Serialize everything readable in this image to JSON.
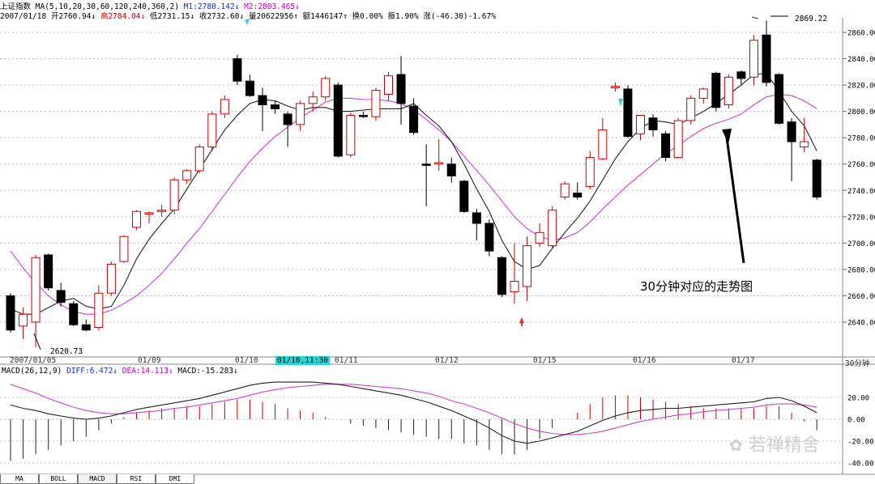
{
  "header": {
    "line1": {
      "name": "上证指数",
      "ma_spec": "MA(5,10,20,30,60,120,240,360,2)",
      "m1": "M1:2780.142↓",
      "m2": "M2:2803.465↓"
    },
    "line2": {
      "date": "2007/01/18",
      "open": "开2760.94↓",
      "high": "高2784.04↓",
      "low": "低2731.15↓",
      "close": "收2732.60↓",
      "volume": "量20622956↑",
      "amount": "额1446147↑",
      "turnover": "换0.00%",
      "amplitude": "振1.90%",
      "change": "涨(-46.30)-1.67%"
    }
  },
  "main_chart": {
    "y_ticks": [
      "2860.00",
      "2840.00",
      "2820.00",
      "2800.00",
      "2780.00",
      "2760.00",
      "2740.00",
      "2720.00",
      "2700.00",
      "2680.00",
      "2660.00",
      "2640.00"
    ],
    "high_label": "2869.22",
    "low_label": "2620.73",
    "annotation": "30分钟对应的走势图",
    "period_badge": "30分钟",
    "cursor_date": "01/10,11:30",
    "dates": [
      "2007/01/05",
      "01/09",
      "01/10",
      "01/11",
      "01/12",
      "01/15",
      "01/16",
      "01/17"
    ],
    "colors": {
      "ma1": "#222222",
      "ma2": "#d040d0",
      "up": "#cc0000",
      "down": "#000000"
    }
  },
  "macd_panel": {
    "title": "MACD(26,12,9)",
    "diff": "DIFF:6.472↓",
    "dea": "DEA:14.113↓",
    "macd": "MACD:-15.283↓",
    "y_ticks": [
      "20.00",
      "0.00",
      "-20.00",
      "-40.00"
    ]
  },
  "tabs": [
    "MA",
    "BOLL",
    "MACD",
    "RSI",
    "DMI"
  ],
  "watermark": "若禅精舍",
  "chart_data": {
    "type": "candlestick",
    "title": "上证指数",
    "ylim": [
      2630,
      2870
    ],
    "candles": [
      {
        "o": 2660,
        "h": 2662,
        "l": 2632,
        "c": 2634
      },
      {
        "o": 2637,
        "h": 2651,
        "l": 2627,
        "c": 2646
      },
      {
        "o": 2640,
        "h": 2691,
        "l": 2621,
        "c": 2689
      },
      {
        "o": 2691,
        "h": 2692,
        "l": 2664,
        "c": 2666
      },
      {
        "o": 2664,
        "h": 2670,
        "l": 2652,
        "c": 2655
      },
      {
        "o": 2654,
        "h": 2656,
        "l": 2637,
        "c": 2638
      },
      {
        "o": 2638,
        "h": 2642,
        "l": 2633,
        "c": 2634
      },
      {
        "o": 2636,
        "h": 2668,
        "l": 2634,
        "c": 2662
      },
      {
        "o": 2662,
        "h": 2686,
        "l": 2660,
        "c": 2684
      },
      {
        "o": 2686,
        "h": 2706,
        "l": 2685,
        "c": 2705
      },
      {
        "o": 2712,
        "h": 2725,
        "l": 2710,
        "c": 2724
      },
      {
        "o": 2722,
        "h": 2724,
        "l": 2715,
        "c": 2723
      },
      {
        "o": 2724,
        "h": 2729,
        "l": 2720,
        "c": 2725
      },
      {
        "o": 2725,
        "h": 2750,
        "l": 2722,
        "c": 2748
      },
      {
        "o": 2748,
        "h": 2756,
        "l": 2745,
        "c": 2755
      },
      {
        "o": 2755,
        "h": 2775,
        "l": 2753,
        "c": 2773
      },
      {
        "o": 2773,
        "h": 2800,
        "l": 2770,
        "c": 2798
      },
      {
        "o": 2798,
        "h": 2812,
        "l": 2795,
        "c": 2809
      },
      {
        "o": 2840,
        "h": 2843,
        "l": 2820,
        "c": 2823
      },
      {
        "o": 2823,
        "h": 2828,
        "l": 2811,
        "c": 2812
      },
      {
        "o": 2812,
        "h": 2818,
        "l": 2785,
        "c": 2805
      },
      {
        "o": 2805,
        "h": 2808,
        "l": 2798,
        "c": 2802
      },
      {
        "o": 2798,
        "h": 2800,
        "l": 2773,
        "c": 2790
      },
      {
        "o": 2790,
        "h": 2808,
        "l": 2785,
        "c": 2806
      },
      {
        "o": 2806,
        "h": 2815,
        "l": 2800,
        "c": 2811
      },
      {
        "o": 2811,
        "h": 2827,
        "l": 2808,
        "c": 2825
      },
      {
        "o": 2820,
        "h": 2822,
        "l": 2765,
        "c": 2766
      },
      {
        "o": 2767,
        "h": 2799,
        "l": 2765,
        "c": 2797
      },
      {
        "o": 2797,
        "h": 2800,
        "l": 2795,
        "c": 2796
      },
      {
        "o": 2796,
        "h": 2818,
        "l": 2793,
        "c": 2816
      },
      {
        "o": 2813,
        "h": 2830,
        "l": 2808,
        "c": 2827
      },
      {
        "o": 2828,
        "h": 2842,
        "l": 2790,
        "c": 2806
      },
      {
        "o": 2804,
        "h": 2810,
        "l": 2782,
        "c": 2784
      },
      {
        "o": 2760,
        "h": 2775,
        "l": 2728,
        "c": 2759
      },
      {
        "o": 2760,
        "h": 2779,
        "l": 2755,
        "c": 2761
      },
      {
        "o": 2760,
        "h": 2765,
        "l": 2746,
        "c": 2751
      },
      {
        "o": 2747,
        "h": 2748,
        "l": 2723,
        "c": 2724
      },
      {
        "o": 2723,
        "h": 2726,
        "l": 2702,
        "c": 2715
      },
      {
        "o": 2715,
        "h": 2718,
        "l": 2690,
        "c": 2694
      },
      {
        "o": 2689,
        "h": 2690,
        "l": 2659,
        "c": 2661
      },
      {
        "o": 2663,
        "h": 2700,
        "l": 2654,
        "c": 2671
      },
      {
        "o": 2667,
        "h": 2705,
        "l": 2656,
        "c": 2698
      },
      {
        "o": 2700,
        "h": 2715,
        "l": 2697,
        "c": 2708
      },
      {
        "o": 2698,
        "h": 2728,
        "l": 2696,
        "c": 2725
      },
      {
        "o": 2735,
        "h": 2747,
        "l": 2733,
        "c": 2745
      },
      {
        "o": 2738,
        "h": 2746,
        "l": 2733,
        "c": 2735
      },
      {
        "o": 2743,
        "h": 2770,
        "l": 2741,
        "c": 2765
      },
      {
        "o": 2764,
        "h": 2795,
        "l": 2763,
        "c": 2786
      },
      {
        "o": 2818,
        "h": 2822,
        "l": 2815,
        "c": 2819
      },
      {
        "o": 2817,
        "h": 2820,
        "l": 2780,
        "c": 2781
      },
      {
        "o": 2783,
        "h": 2797,
        "l": 2778,
        "c": 2797
      },
      {
        "o": 2795,
        "h": 2798,
        "l": 2781,
        "c": 2786
      },
      {
        "o": 2783,
        "h": 2785,
        "l": 2762,
        "c": 2765
      },
      {
        "o": 2765,
        "h": 2795,
        "l": 2764,
        "c": 2793
      },
      {
        "o": 2793,
        "h": 2812,
        "l": 2790,
        "c": 2810
      },
      {
        "o": 2810,
        "h": 2818,
        "l": 2806,
        "c": 2817
      },
      {
        "o": 2829,
        "h": 2830,
        "l": 2800,
        "c": 2803
      },
      {
        "o": 2805,
        "h": 2828,
        "l": 2802,
        "c": 2826
      },
      {
        "o": 2830,
        "h": 2831,
        "l": 2820,
        "c": 2825
      },
      {
        "o": 2826,
        "h": 2858,
        "l": 2820,
        "c": 2854
      },
      {
        "o": 2858,
        "h": 2869,
        "l": 2819,
        "c": 2822
      },
      {
        "o": 2828,
        "h": 2829,
        "l": 2790,
        "c": 2791
      },
      {
        "o": 2792,
        "h": 2795,
        "l": 2747,
        "c": 2777
      },
      {
        "o": 2773,
        "h": 2795,
        "l": 2769,
        "c": 2777
      },
      {
        "o": 2763,
        "h": 2764,
        "l": 2733,
        "c": 2735
      }
    ],
    "ma1": [
      2650,
      2646,
      2646,
      2651,
      2656,
      2658,
      2652,
      2650,
      2652,
      2668,
      2688,
      2703,
      2715,
      2726,
      2741,
      2756,
      2771,
      2786,
      2797,
      2806,
      2809,
      2808,
      2804,
      2801,
      2803,
      2803,
      2800,
      2800,
      2801,
      2802,
      2802,
      2802,
      2806,
      2797,
      2789,
      2777,
      2760,
      2741,
      2724,
      2702,
      2686,
      2680,
      2683,
      2696,
      2708,
      2719,
      2732,
      2748,
      2764,
      2777,
      2787,
      2793,
      2792,
      2790,
      2795,
      2800,
      2806,
      2813,
      2820,
      2828,
      2829,
      2815,
      2800,
      2789,
      2770
    ],
    "ma2": [
      2694,
      2681,
      2670,
      2660,
      2653,
      2648,
      2646,
      2646,
      2649,
      2654,
      2660,
      2668,
      2677,
      2688,
      2700,
      2711,
      2724,
      2737,
      2750,
      2762,
      2772,
      2781,
      2788,
      2795,
      2801,
      2807,
      2810,
      2810,
      2809,
      2809,
      2808,
      2806,
      2801,
      2794,
      2786,
      2777,
      2766,
      2755,
      2744,
      2732,
      2720,
      2711,
      2705,
      2702,
      2704,
      2708,
      2716,
      2726,
      2735,
      2744,
      2752,
      2760,
      2768,
      2774,
      2781,
      2787,
      2791,
      2794,
      2798,
      2805,
      2811,
      2813,
      2812,
      2808,
      2802
    ],
    "macd_dif": [
      13,
      10,
      8,
      5,
      3,
      1,
      0,
      1,
      3,
      6,
      9,
      11,
      13,
      15,
      17,
      19,
      22,
      25,
      28,
      31,
      33,
      34,
      34,
      34,
      34,
      33,
      32,
      30,
      28,
      26,
      24,
      22,
      19,
      16,
      12,
      8,
      3,
      -2,
      -8,
      -15,
      -20,
      -22,
      -20,
      -17,
      -14,
      -11,
      -6,
      -1,
      3,
      6,
      8,
      9,
      10,
      10,
      11,
      12,
      13,
      14,
      15,
      16,
      19,
      20,
      17,
      12,
      6
    ],
    "macd_dea": [
      32,
      28,
      24,
      19,
      15,
      11,
      8,
      6,
      5,
      5,
      6,
      7,
      8,
      10,
      11,
      13,
      15,
      17,
      19,
      22,
      25,
      27,
      29,
      30,
      31,
      32,
      32,
      32,
      31,
      30,
      29,
      28,
      26,
      24,
      21,
      17,
      14,
      10,
      6,
      1,
      -4,
      -8,
      -11,
      -13,
      -14,
      -14,
      -13,
      -11,
      -8,
      -5,
      -2,
      0,
      2,
      4,
      5,
      7,
      8,
      9,
      10,
      11,
      13,
      14,
      14,
      13,
      11
    ],
    "macd_bars": [
      -38,
      -36,
      -32,
      -28,
      -24,
      -20,
      -16,
      -10,
      -4,
      2,
      6,
      8,
      10,
      10,
      12,
      12,
      14,
      16,
      18,
      18,
      16,
      14,
      10,
      8,
      6,
      2,
      0,
      -4,
      -6,
      -8,
      -10,
      -12,
      -14,
      -16,
      -18,
      -18,
      -22,
      -24,
      -28,
      -32,
      -32,
      -28,
      -18,
      -8,
      0,
      6,
      14,
      20,
      22,
      22,
      20,
      18,
      16,
      14,
      12,
      10,
      10,
      10,
      10,
      10,
      12,
      12,
      6,
      -2,
      -10
    ]
  }
}
